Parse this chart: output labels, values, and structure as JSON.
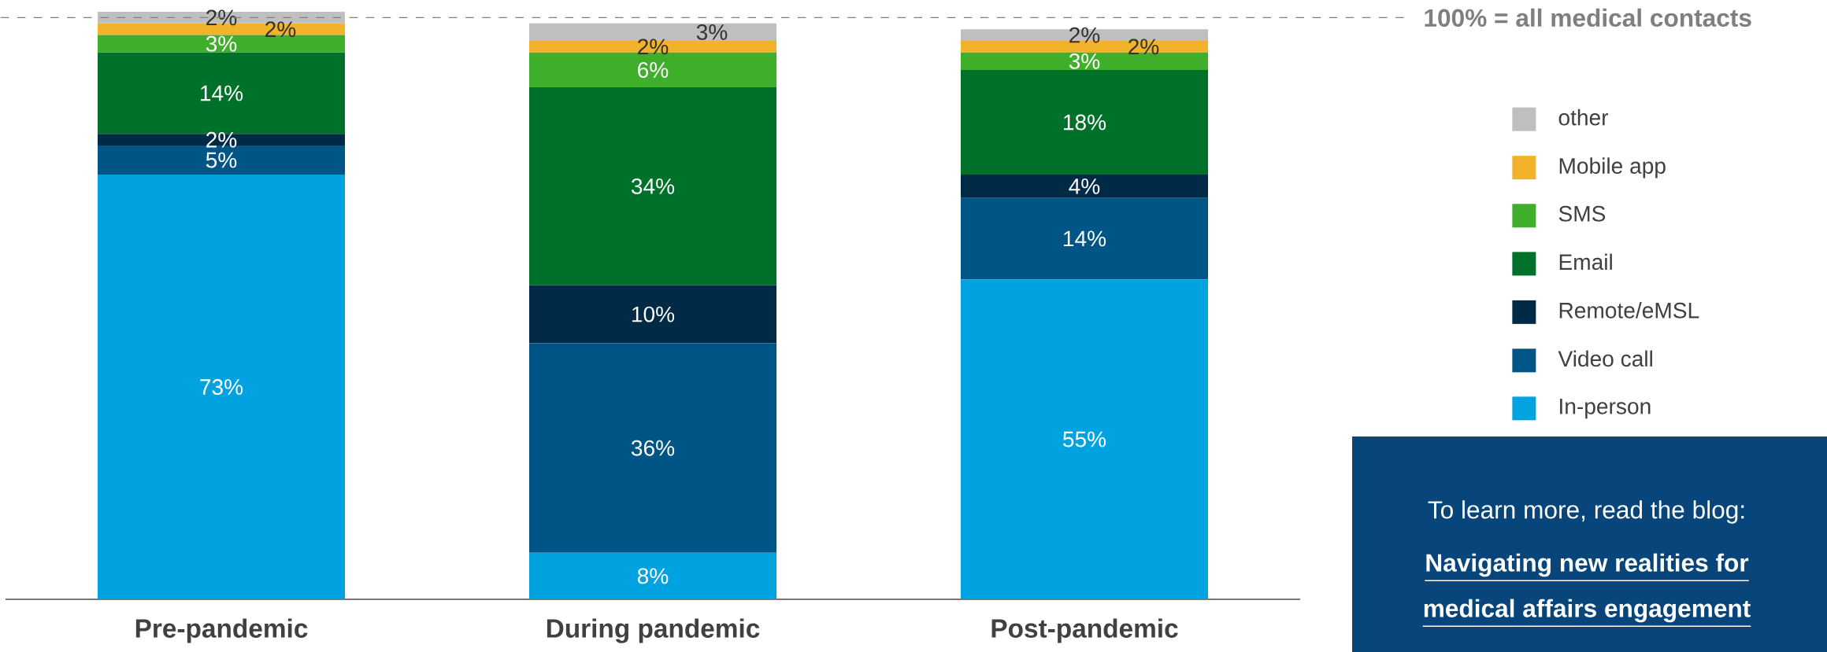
{
  "chart_data": {
    "type": "bar",
    "stacked": true,
    "relative": false,
    "categories": [
      "Pre-pandemic",
      "During pandemic",
      "Post-pandemic"
    ],
    "series": [
      {
        "name": "In-person",
        "color": "#00a3e0",
        "values": [
          73,
          8,
          55
        ],
        "value_labels": [
          "73%",
          "8%",
          "55%"
        ]
      },
      {
        "name": "Video call",
        "color": "#005587",
        "values": [
          5,
          36,
          14
        ],
        "value_labels": [
          "5%",
          "36%",
          "14%"
        ]
      },
      {
        "name": "Remote/eMSL",
        "color": "#002a46",
        "values": [
          2,
          10,
          4
        ],
        "value_labels": [
          "2%",
          "10%",
          "4%"
        ]
      },
      {
        "name": "Email",
        "color": "#00712a",
        "values": [
          14,
          34,
          18
        ],
        "value_labels": [
          "14%",
          "34%",
          "18%"
        ]
      },
      {
        "name": "SMS",
        "color": "#3fae2a",
        "values": [
          3,
          6,
          3
        ],
        "value_labels": [
          "3%",
          "6%",
          "3%"
        ]
      },
      {
        "name": "Mobile app",
        "color": "#f2b32a",
        "values": [
          2,
          2,
          2
        ],
        "value_labels": [
          "2%",
          "2%",
          "2%"
        ]
      },
      {
        "name": "other",
        "color": "#bfbfbf",
        "values": [
          2,
          3,
          2
        ],
        "value_labels": [
          "2%",
          "3%",
          "2%"
        ]
      }
    ],
    "ylim": [
      0,
      101
    ],
    "tick_labels": "x",
    "legend": "right",
    "grid": false,
    "ref_lines": [
      {
        "axis": "y",
        "value": 100,
        "label": "100% = all medical contacts",
        "color": "#7f7f7f",
        "line_style": "dashed"
      }
    ],
    "annotations": [
      "To learn more, read the blog:",
      "Navigating new realities for",
      "medical affairs engagement"
    ]
  }
}
